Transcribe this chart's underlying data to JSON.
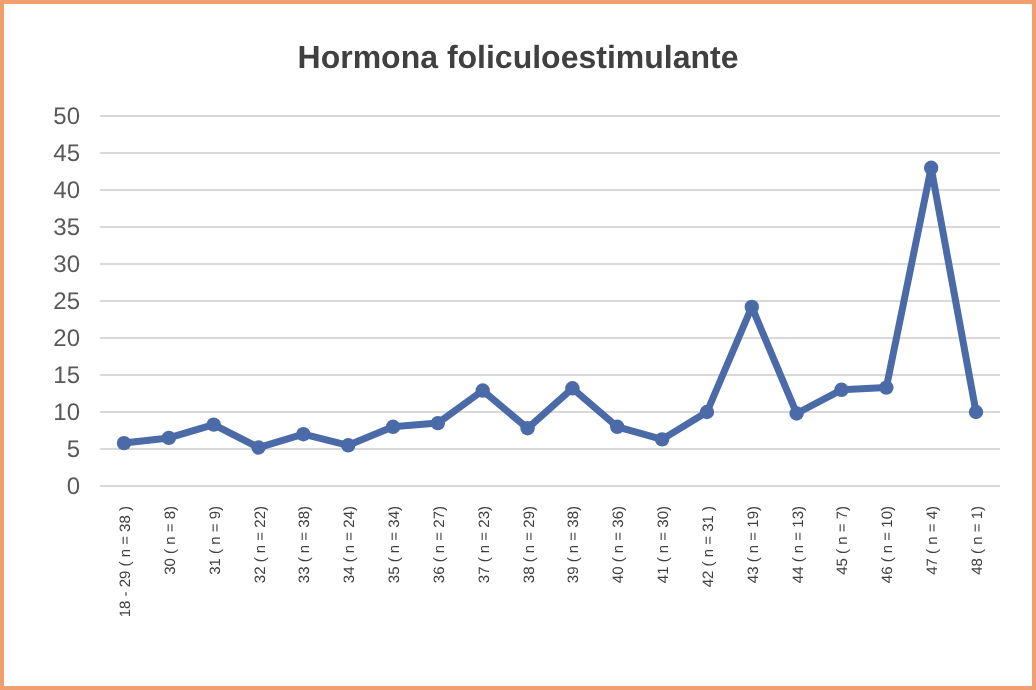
{
  "chart_data": {
    "type": "line",
    "title": "Hormona foliculoestimulante",
    "categories": [
      "18 - 29 ( n = 38 )",
      "30 ( n = 8)",
      "31 ( n = 9)",
      "32 ( n = 22)",
      "33 ( n = 38)",
      "34 ( n = 24)",
      "35 ( n = 34)",
      "36 ( n = 27)",
      "37 ( n = 23)",
      "38 ( n = 29)",
      "39 ( n = 38)",
      "40 ( n = 36)",
      "41 ( n = 30)",
      "42 ( n = 31 )",
      "43 ( n = 19)",
      "44 ( n = 13)",
      "45 ( n = 7)",
      "46 ( n = 10)",
      "47 ( n = 4)",
      "48 ( n = 1)"
    ],
    "series": [
      {
        "color": "#4a6aa8",
        "values": [
          5.8,
          6.5,
          8.3,
          5.2,
          7,
          5.5,
          8,
          8.5,
          12.9,
          7.8,
          13.2,
          8,
          6.3,
          10,
          24.2,
          9.8,
          13,
          13.3,
          43,
          10
        ]
      }
    ],
    "ylim": [
      0,
      50
    ],
    "yticks": [
      0,
      5,
      10,
      15,
      20,
      25,
      30,
      35,
      40,
      45,
      50
    ],
    "grid": "y",
    "marker": "circle",
    "line_style": "solid"
  }
}
